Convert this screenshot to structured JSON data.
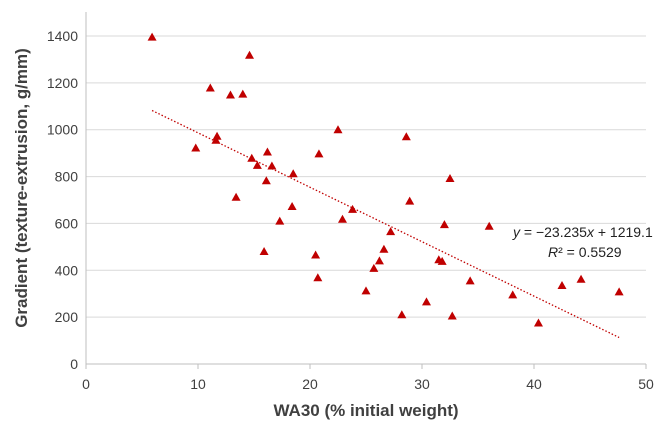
{
  "chart_data": {
    "type": "scatter",
    "title": "",
    "xlabel": "WA30 (% initial weight)",
    "ylabel": "Gradient (texture-extrusion, g/mm)",
    "xlim": [
      0,
      50
    ],
    "ylim": [
      0,
      1400
    ],
    "x_ticks": [
      "0",
      "10",
      "20",
      "30",
      "40",
      "50"
    ],
    "y_ticks": [
      "0",
      "200",
      "400",
      "600",
      "800",
      "1000",
      "1200",
      "1400"
    ],
    "grid": "horizontal",
    "legend": "none",
    "marker_color": "#c00000",
    "trendline_color": "#c00000",
    "series": [
      {
        "marker": "triangle",
        "points": [
          [
            5.9,
            1395
          ],
          [
            9.8,
            922
          ],
          [
            11.1,
            1178
          ],
          [
            11.6,
            955
          ],
          [
            11.7,
            972
          ],
          [
            12.9,
            1148
          ],
          [
            13.4,
            712
          ],
          [
            14.0,
            1152
          ],
          [
            14.6,
            1318
          ],
          [
            14.8,
            878
          ],
          [
            15.3,
            848
          ],
          [
            15.9,
            480
          ],
          [
            16.1,
            782
          ],
          [
            16.2,
            905
          ],
          [
            16.6,
            845
          ],
          [
            17.3,
            610
          ],
          [
            18.4,
            672
          ],
          [
            18.5,
            812
          ],
          [
            20.5,
            465
          ],
          [
            20.7,
            368
          ],
          [
            20.8,
            897
          ],
          [
            22.5,
            1000
          ],
          [
            22.9,
            618
          ],
          [
            23.8,
            660
          ],
          [
            25.0,
            312
          ],
          [
            25.7,
            408
          ],
          [
            26.2,
            440
          ],
          [
            26.6,
            490
          ],
          [
            27.2,
            565
          ],
          [
            28.2,
            210
          ],
          [
            28.6,
            970
          ],
          [
            28.9,
            695
          ],
          [
            30.4,
            265
          ],
          [
            31.5,
            445
          ],
          [
            31.8,
            438
          ],
          [
            32.0,
            595
          ],
          [
            32.5,
            792
          ],
          [
            32.7,
            205
          ],
          [
            34.3,
            355
          ],
          [
            36.0,
            588
          ],
          [
            38.1,
            295
          ],
          [
            40.4,
            175
          ],
          [
            42.5,
            335
          ],
          [
            44.2,
            362
          ],
          [
            47.6,
            308
          ]
        ]
      }
    ],
    "trendline": {
      "slope": -23.235,
      "intercept": 1219.1,
      "x_range": [
        5.9,
        47.6
      ],
      "style": "dotted"
    },
    "annotation": {
      "eq_y": "y",
      "eq_eq": " = −23.235",
      "eq_x": "x",
      "eq_rest": " + 1219.1",
      "r2_r": "R",
      "r2_rest": "² = 0.5529"
    }
  }
}
